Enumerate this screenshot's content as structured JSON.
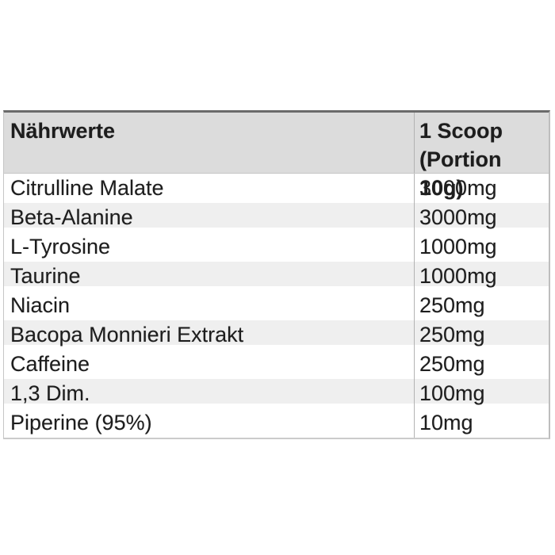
{
  "table": {
    "header": {
      "col1": "Nährwerte",
      "col2_line1": "1 Scoop",
      "col2_line2": "(Portion 10g)"
    },
    "rows": [
      {
        "name": "Citrulline Malate",
        "amount": "3000mg"
      },
      {
        "name": "Beta-Alanine",
        "amount": "3000mg"
      },
      {
        "name": "L-Tyrosine",
        "amount": "1000mg"
      },
      {
        "name": "Taurine",
        "amount": "1000mg"
      },
      {
        "name": "Niacin",
        "amount": "250mg"
      },
      {
        "name": "Bacopa Monnieri Extrakt",
        "amount": "250mg"
      },
      {
        "name": "Caffeine",
        "amount": "250mg"
      },
      {
        "name": "1,3 Dim.",
        "amount": "100mg"
      },
      {
        "name": "Piperine (95%)",
        "amount": "10mg"
      }
    ],
    "colors": {
      "header_bg": "#dcdcdc",
      "stripe_bg": "#efefef",
      "border_top": "#6b6b6b",
      "border_light": "#c6c6c6",
      "border_side": "#bdbdbd",
      "border_bottom": "#cbcbcb",
      "divider": "#b3b3b3",
      "text": "#1d1d1d"
    }
  }
}
